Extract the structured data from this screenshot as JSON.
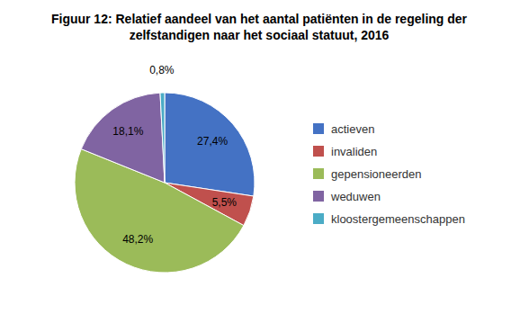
{
  "chart_data": {
    "type": "pie",
    "title": "Figuur 12: Relatief aandeel van het aantal patiënten in de regeling der\nzelfstandigen naar het sociaal statuut, 2016",
    "categories": [
      "actieven",
      "invaliden",
      "gepensioneerden",
      "weduwen",
      "kloostergemeenschappen"
    ],
    "values": [
      27.4,
      5.5,
      48.2,
      18.1,
      0.8
    ],
    "value_labels": [
      "27,4%",
      "5,5%",
      "48,2%",
      "18,1%",
      "0,8%"
    ],
    "colors": [
      "#4472C4",
      "#C0504D",
      "#9BBB59",
      "#8064A2",
      "#4BACC6"
    ],
    "data_labels": true,
    "legend": "right"
  }
}
